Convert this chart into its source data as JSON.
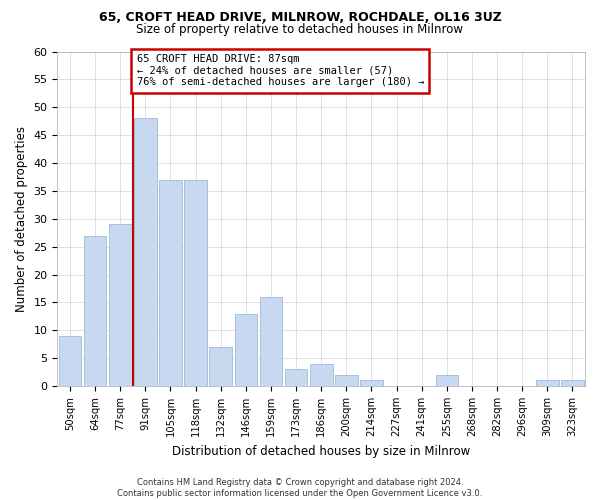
{
  "title1": "65, CROFT HEAD DRIVE, MILNROW, ROCHDALE, OL16 3UZ",
  "title2": "Size of property relative to detached houses in Milnrow",
  "xlabel": "Distribution of detached houses by size in Milnrow",
  "ylabel": "Number of detached properties",
  "bar_labels": [
    "50sqm",
    "64sqm",
    "77sqm",
    "91sqm",
    "105sqm",
    "118sqm",
    "132sqm",
    "146sqm",
    "159sqm",
    "173sqm",
    "186sqm",
    "200sqm",
    "214sqm",
    "227sqm",
    "241sqm",
    "255sqm",
    "268sqm",
    "282sqm",
    "296sqm",
    "309sqm",
    "323sqm"
  ],
  "bar_values": [
    9,
    27,
    29,
    48,
    37,
    37,
    7,
    13,
    16,
    3,
    4,
    2,
    1,
    0,
    0,
    2,
    0,
    0,
    0,
    1,
    1
  ],
  "bar_color": "#c6d9f0",
  "bar_edge_color": "#a0b8d8",
  "vline_color": "#cc0000",
  "vline_x_index": 2.5,
  "annotation_text": "65 CROFT HEAD DRIVE: 87sqm\n← 24% of detached houses are smaller (57)\n76% of semi-detached houses are larger (180) →",
  "annotation_box_color": "#cc0000",
  "ylim": [
    0,
    60
  ],
  "yticks": [
    0,
    5,
    10,
    15,
    20,
    25,
    30,
    35,
    40,
    45,
    50,
    55,
    60
  ],
  "footnote": "Contains HM Land Registry data © Crown copyright and database right 2024.\nContains public sector information licensed under the Open Government Licence v3.0.",
  "bg_color": "#ffffff",
  "grid_color": "#cdd5e0"
}
